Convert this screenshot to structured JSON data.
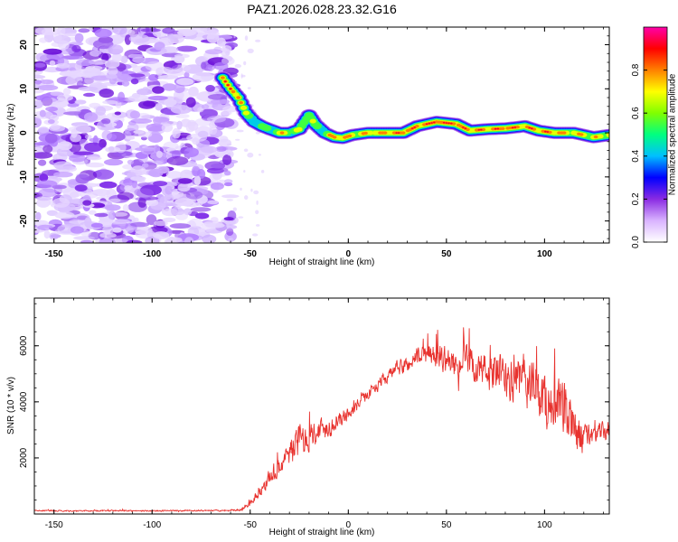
{
  "title": "PAZ1.2026.028.23.32.G16",
  "chart_data": [
    {
      "type": "heatmap",
      "xlabel": "Height of straight line (km)",
      "ylabel": "Frequency (Hz)",
      "xlim": [
        -160,
        133
      ],
      "ylim": [
        -25,
        24
      ],
      "xticks": [
        -150,
        -100,
        -50,
        0,
        50,
        100
      ],
      "xtick_labels": [
        "-150",
        "-100",
        "-50",
        "0",
        "50",
        "100"
      ],
      "yticks": [
        -20,
        -10,
        0,
        10,
        20
      ],
      "ytick_labels": [
        "-20",
        "-10",
        "0",
        "10",
        "20"
      ],
      "noise_region_x": [
        -160,
        -62
      ],
      "ridge": [
        {
          "x": -64,
          "f": 12.5,
          "amp": 0.85
        },
        {
          "x": -60,
          "f": 10,
          "amp": 0.95
        },
        {
          "x": -56,
          "f": 8,
          "amp": 0.9
        },
        {
          "x": -52,
          "f": 4.5,
          "amp": 0.6
        },
        {
          "x": -48,
          "f": 2.5,
          "amp": 0.55
        },
        {
          "x": -44,
          "f": 1.5,
          "amp": 0.5
        },
        {
          "x": -40,
          "f": 0.8,
          "amp": 0.55
        },
        {
          "x": -35,
          "f": 0,
          "amp": 0.7
        },
        {
          "x": -30,
          "f": 0,
          "amp": 0.65
        },
        {
          "x": -25,
          "f": 0.8,
          "amp": 0.6
        },
        {
          "x": -20,
          "f": 4,
          "amp": 0.7
        },
        {
          "x": -17,
          "f": 2,
          "amp": 0.55
        },
        {
          "x": -12,
          "f": 0,
          "amp": 0.6
        },
        {
          "x": -7,
          "f": -1,
          "amp": 0.8
        },
        {
          "x": -3,
          "f": -1.2,
          "amp": 0.85
        },
        {
          "x": 2,
          "f": -0.5,
          "amp": 0.7
        },
        {
          "x": 10,
          "f": 0,
          "amp": 0.75
        },
        {
          "x": 20,
          "f": 0,
          "amp": 0.8
        },
        {
          "x": 28,
          "f": 0,
          "amp": 0.9
        },
        {
          "x": 35,
          "f": 1.5,
          "amp": 0.85
        },
        {
          "x": 45,
          "f": 2.5,
          "amp": 0.95
        },
        {
          "x": 55,
          "f": 2,
          "amp": 0.9
        },
        {
          "x": 62,
          "f": 0.5,
          "amp": 0.8
        },
        {
          "x": 70,
          "f": 0.8,
          "amp": 0.85
        },
        {
          "x": 80,
          "f": 1,
          "amp": 0.9
        },
        {
          "x": 90,
          "f": 1.5,
          "amp": 0.8
        },
        {
          "x": 97,
          "f": 0.5,
          "amp": 0.85
        },
        {
          "x": 105,
          "f": 0,
          "amp": 0.8
        },
        {
          "x": 115,
          "f": 0,
          "amp": 0.75
        },
        {
          "x": 125,
          "f": -1,
          "amp": 0.7
        },
        {
          "x": 133,
          "f": -0.5,
          "amp": 0.7
        }
      ]
    },
    {
      "type": "line",
      "xlabel": "Height of straight line (km)",
      "ylabel": "SNR (10 * v/v)",
      "xlim": [
        -160,
        133
      ],
      "ylim": [
        0,
        7700
      ],
      "xticks": [
        -150,
        -100,
        -50,
        0,
        50,
        100
      ],
      "xtick_labels": [
        "-150",
        "-100",
        "-50",
        "0",
        "50",
        "100"
      ],
      "yticks": [
        2000,
        4000,
        6000
      ],
      "ytick_labels": [
        "2000",
        "4000",
        "6000"
      ],
      "color": "#e8322e",
      "series": [
        {
          "name": "SNR",
          "x": [
            -160,
            -140,
            -120,
            -100,
            -80,
            -60,
            -55,
            -50,
            -45,
            -40,
            -35,
            -30,
            -25,
            -20,
            -15,
            -10,
            -5,
            0,
            5,
            10,
            15,
            20,
            25,
            30,
            35,
            40,
            45,
            50,
            55,
            60,
            65,
            70,
            75,
            80,
            85,
            90,
            95,
            100,
            105,
            110,
            115,
            120,
            125,
            130,
            133
          ],
          "y": [
            120,
            110,
            120,
            110,
            120,
            120,
            150,
            400,
            800,
            1300,
            1700,
            2200,
            2600,
            2800,
            3000,
            3100,
            3300,
            3600,
            3900,
            4300,
            4600,
            4900,
            5200,
            5300,
            5600,
            5700,
            5600,
            5500,
            5300,
            5500,
            5200,
            5100,
            5000,
            4900,
            4700,
            4800,
            4400,
            4000,
            3800,
            3600,
            3000,
            2700,
            2900,
            2900,
            3000
          ],
          "noise": [
            30,
            30,
            30,
            30,
            30,
            30,
            60,
            150,
            250,
            400,
            500,
            700,
            800,
            650,
            600,
            500,
            400,
            300,
            280,
            280,
            280,
            300,
            350,
            400,
            450,
            500,
            550,
            600,
            650,
            700,
            800,
            850,
            950,
            1050,
            1100,
            1200,
            1300,
            1300,
            1250,
            1300,
            1100,
            700,
            500,
            450,
            450
          ]
        }
      ]
    }
  ],
  "colorbar": {
    "label": "Normalized spectral amplitude",
    "ticks": [
      0.0,
      0.2,
      0.4,
      0.6,
      0.8
    ],
    "tick_labels": [
      "0.0",
      "0.2",
      "0.4",
      "0.6",
      "0.8"
    ],
    "range": [
      0,
      1
    ],
    "colors": [
      "#ffffff",
      "#d9b3ff",
      "#8a2be2",
      "#0000ff",
      "#00bfff",
      "#00ff80",
      "#80ff00",
      "#ffff00",
      "#ff8000",
      "#ff0000",
      "#ff00aa"
    ]
  }
}
